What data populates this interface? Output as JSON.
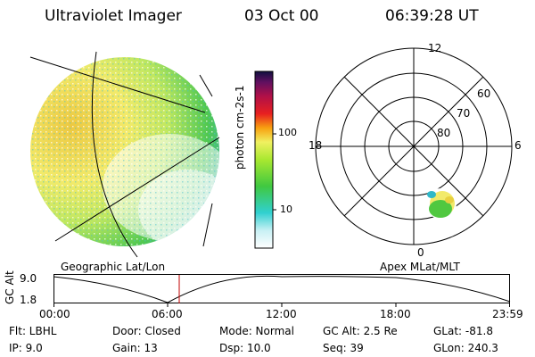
{
  "header": {
    "instrument": "Ultraviolet Imager",
    "date": "03 Oct 00",
    "time": "06:39:28 UT"
  },
  "colorbar": {
    "unit_label": "photon cm-2s-1",
    "ticks": [
      "100",
      "10"
    ]
  },
  "polar_plot": {
    "mlt_labels": {
      "top": "12",
      "left": "18",
      "right": "6",
      "bottom": "0"
    },
    "lat_labels": [
      "60",
      "70",
      "80"
    ]
  },
  "footer_labels": {
    "left": "Geographic Lat/Lon",
    "right": "Apex MLat/MLT"
  },
  "gc_alt_plot": {
    "axis_label": "GC Alt",
    "y_ticks": [
      "9.0",
      "1.8"
    ],
    "x_ticks": [
      "00:00",
      "06:00",
      "12:00",
      "18:00",
      "23:59"
    ]
  },
  "info": {
    "row1": [
      "Flt: LBHL",
      "Door: Closed",
      "Mode: Normal",
      "GC Alt: 2.5 Re",
      "GLat: -81.8"
    ],
    "row2": [
      "IP:  9.0",
      "Gain: 13",
      "Dsp:   10.0",
      "Seq: 39",
      "GLon: 240.3"
    ]
  },
  "colors": {
    "marker": "#c00000",
    "aurora_dark": "#d8c020",
    "aurora_light": "#f4f070",
    "green": "#50c840"
  }
}
